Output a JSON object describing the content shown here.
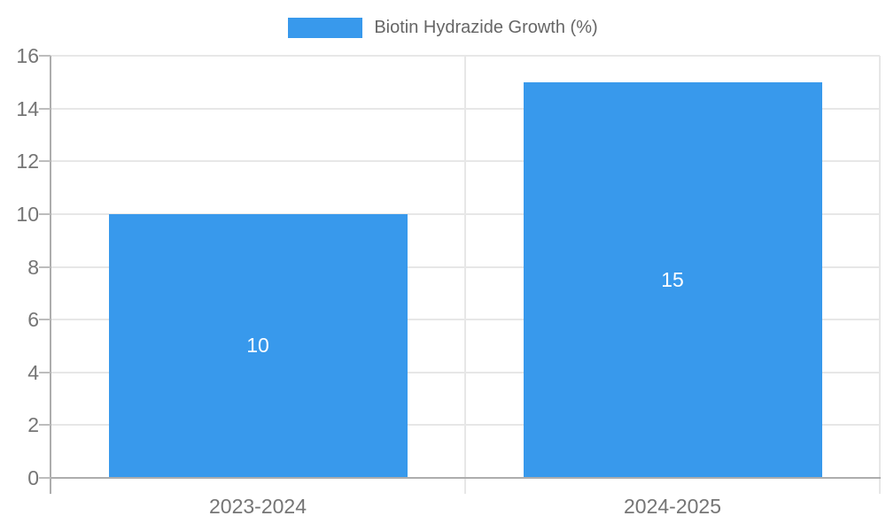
{
  "legend": {
    "label": "Biotin Hydrazide Growth (%)"
  },
  "chart_data": {
    "type": "bar",
    "title": "",
    "xlabel": "",
    "ylabel": "",
    "categories": [
      "2023-2024",
      "2024-2025"
    ],
    "series": [
      {
        "name": "Biotin Hydrazide Growth (%)",
        "values": [
          10,
          15
        ]
      }
    ],
    "bar_value_labels": [
      "10",
      "15"
    ],
    "ylim": [
      0,
      16
    ],
    "yticks": [
      0,
      2,
      4,
      6,
      8,
      10,
      12,
      14,
      16
    ],
    "grid": true,
    "legend_position": "top-center",
    "colors": {
      "bar": "#3899ec",
      "grid": "#e7e7e7",
      "axis": "#adadad",
      "tick_mark": "#bdbdbd",
      "tick_text": "#757575",
      "legend_text": "#666666",
      "bar_label_text": "#ffffff",
      "background": "#ffffff"
    }
  }
}
